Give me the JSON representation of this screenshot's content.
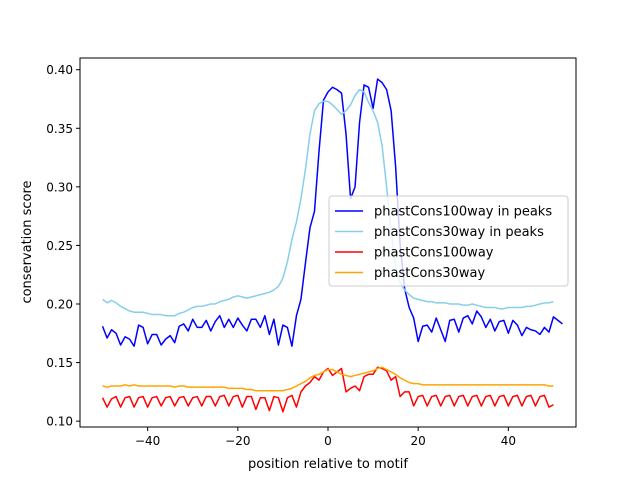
{
  "chart_data": {
    "type": "line",
    "title": "",
    "xlabel": "position relative to motif",
    "ylabel": "conservation score",
    "xlim": [
      -55,
      55
    ],
    "ylim": [
      0.095,
      0.41
    ],
    "xticks": [
      -40,
      -20,
      0,
      20,
      40
    ],
    "xtick_labels": [
      "−40",
      "−20",
      "0",
      "20",
      "40"
    ],
    "yticks": [
      0.1,
      0.15,
      0.2,
      0.25,
      0.3,
      0.35,
      0.4
    ],
    "ytick_labels": [
      "0.10",
      "0.15",
      "0.20",
      "0.25",
      "0.30",
      "0.35",
      "0.40"
    ],
    "grid": false,
    "legend_position": "center-right",
    "x_start": -50,
    "x_step": 1,
    "series": [
      {
        "name": "phastCons100way in peaks",
        "color": "#0000ff",
        "values": [
          0.181,
          0.171,
          0.178,
          0.175,
          0.165,
          0.172,
          0.17,
          0.164,
          0.182,
          0.18,
          0.166,
          0.174,
          0.174,
          0.165,
          0.17,
          0.173,
          0.167,
          0.181,
          0.183,
          0.177,
          0.187,
          0.18,
          0.18,
          0.186,
          0.177,
          0.185,
          0.19,
          0.18,
          0.187,
          0.18,
          0.188,
          0.182,
          0.177,
          0.187,
          0.187,
          0.18,
          0.19,
          0.174,
          0.187,
          0.165,
          0.182,
          0.18,
          0.164,
          0.19,
          0.204,
          0.235,
          0.265,
          0.279,
          0.33,
          0.374,
          0.381,
          0.385,
          0.383,
          0.38,
          0.345,
          0.29,
          0.3,
          0.355,
          0.387,
          0.385,
          0.367,
          0.392,
          0.389,
          0.383,
          0.365,
          0.317,
          0.25,
          0.213,
          0.197,
          0.188,
          0.168,
          0.181,
          0.182,
          0.176,
          0.188,
          0.178,
          0.168,
          0.186,
          0.187,
          0.176,
          0.188,
          0.19,
          0.183,
          0.194,
          0.189,
          0.18,
          0.187,
          0.177,
          0.185,
          0.186,
          0.175,
          0.186,
          0.182,
          0.173,
          0.18,
          0.178,
          0.177,
          0.174,
          0.18,
          0.176,
          0.189,
          0.186,
          0.183
        ]
      },
      {
        "name": "phastCons30way in peaks",
        "color": "#87ceeb",
        "values": [
          0.204,
          0.201,
          0.203,
          0.201,
          0.198,
          0.196,
          0.194,
          0.193,
          0.193,
          0.193,
          0.192,
          0.191,
          0.191,
          0.191,
          0.19,
          0.19,
          0.19,
          0.192,
          0.193,
          0.195,
          0.197,
          0.198,
          0.198,
          0.199,
          0.2,
          0.2,
          0.202,
          0.203,
          0.204,
          0.206,
          0.207,
          0.206,
          0.205,
          0.206,
          0.207,
          0.208,
          0.209,
          0.21,
          0.212,
          0.215,
          0.222,
          0.236,
          0.255,
          0.27,
          0.29,
          0.315,
          0.345,
          0.365,
          0.371,
          0.373,
          0.373,
          0.37,
          0.366,
          0.362,
          0.365,
          0.37,
          0.378,
          0.383,
          0.381,
          0.372,
          0.365,
          0.355,
          0.335,
          0.3,
          0.262,
          0.232,
          0.218,
          0.212,
          0.208,
          0.205,
          0.204,
          0.203,
          0.202,
          0.202,
          0.201,
          0.201,
          0.201,
          0.2,
          0.2,
          0.2,
          0.199,
          0.199,
          0.2,
          0.199,
          0.198,
          0.197,
          0.197,
          0.197,
          0.196,
          0.196,
          0.197,
          0.197,
          0.197,
          0.197,
          0.198,
          0.198,
          0.199,
          0.2,
          0.201,
          0.201,
          0.202
        ]
      },
      {
        "name": "phastCons100way",
        "color": "#ff0000",
        "values": [
          0.12,
          0.112,
          0.119,
          0.121,
          0.112,
          0.12,
          0.121,
          0.112,
          0.12,
          0.121,
          0.112,
          0.12,
          0.121,
          0.113,
          0.12,
          0.121,
          0.113,
          0.12,
          0.121,
          0.113,
          0.12,
          0.121,
          0.113,
          0.121,
          0.121,
          0.113,
          0.121,
          0.122,
          0.113,
          0.121,
          0.122,
          0.112,
          0.121,
          0.121,
          0.11,
          0.12,
          0.12,
          0.109,
          0.121,
          0.12,
          0.108,
          0.12,
          0.122,
          0.112,
          0.125,
          0.13,
          0.133,
          0.138,
          0.135,
          0.142,
          0.145,
          0.139,
          0.142,
          0.145,
          0.125,
          0.128,
          0.13,
          0.126,
          0.138,
          0.14,
          0.14,
          0.146,
          0.145,
          0.143,
          0.135,
          0.138,
          0.121,
          0.125,
          0.125,
          0.113,
          0.121,
          0.122,
          0.113,
          0.121,
          0.122,
          0.113,
          0.121,
          0.122,
          0.113,
          0.121,
          0.122,
          0.113,
          0.121,
          0.122,
          0.113,
          0.121,
          0.122,
          0.113,
          0.121,
          0.122,
          0.113,
          0.121,
          0.122,
          0.113,
          0.121,
          0.122,
          0.113,
          0.121,
          0.122,
          0.112,
          0.114
        ]
      },
      {
        "name": "phastCons30way",
        "color": "#ffa500",
        "values": [
          0.13,
          0.129,
          0.13,
          0.13,
          0.13,
          0.131,
          0.13,
          0.131,
          0.13,
          0.13,
          0.13,
          0.13,
          0.13,
          0.13,
          0.13,
          0.13,
          0.129,
          0.13,
          0.13,
          0.129,
          0.129,
          0.129,
          0.129,
          0.129,
          0.129,
          0.129,
          0.129,
          0.129,
          0.128,
          0.128,
          0.128,
          0.128,
          0.127,
          0.127,
          0.126,
          0.126,
          0.126,
          0.126,
          0.126,
          0.126,
          0.126,
          0.127,
          0.128,
          0.13,
          0.132,
          0.134,
          0.137,
          0.139,
          0.14,
          0.142,
          0.144,
          0.144,
          0.142,
          0.14,
          0.139,
          0.138,
          0.139,
          0.14,
          0.141,
          0.142,
          0.143,
          0.145,
          0.146,
          0.144,
          0.142,
          0.14,
          0.137,
          0.135,
          0.133,
          0.132,
          0.132,
          0.131,
          0.131,
          0.131,
          0.131,
          0.131,
          0.131,
          0.131,
          0.131,
          0.131,
          0.131,
          0.131,
          0.131,
          0.131,
          0.131,
          0.131,
          0.131,
          0.131,
          0.131,
          0.131,
          0.131,
          0.131,
          0.131,
          0.131,
          0.131,
          0.131,
          0.131,
          0.131,
          0.131,
          0.13,
          0.13
        ]
      }
    ]
  }
}
